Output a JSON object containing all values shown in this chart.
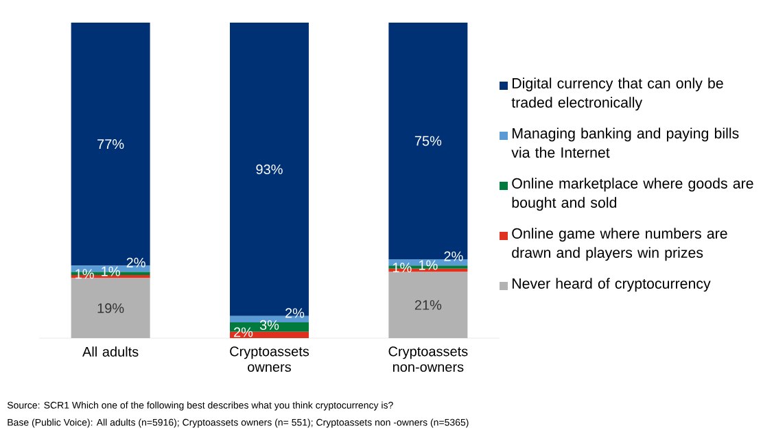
{
  "chart_data": {
    "type": "bar",
    "stacked": true,
    "categories": [
      "All adults",
      "Cryptoassets owners",
      "Cryptoassets non-owners"
    ],
    "series": [
      {
        "name": "Never heard of cryptocurrency",
        "color": "#b2b2b2",
        "values": [
          19,
          0,
          21
        ],
        "value_labels": [
          "19%",
          null,
          "21%"
        ]
      },
      {
        "name": "Online game where numbers are drawn and players win prizes",
        "color": "#e0301e",
        "values": [
          1,
          2,
          1
        ],
        "value_labels": [
          "1%",
          "2%",
          "1%"
        ]
      },
      {
        "name": "Online marketplace where goods are bought and sold",
        "color": "#007a3d",
        "values": [
          1,
          3,
          1
        ],
        "value_labels": [
          "1%",
          "3%",
          "1%"
        ]
      },
      {
        "name": "Managing banking and paying bills via the Internet",
        "color": "#5b9bd5",
        "values": [
          2,
          2,
          2
        ],
        "value_labels": [
          "2%",
          "2%",
          "2%"
        ]
      },
      {
        "name": "Digital currency that can only be traded electronically",
        "color": "#003175",
        "values": [
          77,
          93,
          75
        ],
        "value_labels": [
          "77%",
          "93%",
          "75%"
        ]
      }
    ],
    "legend": "right",
    "annotations": [
      "Source: SCR1 Which one of the following best describes what you think cryptocurrency is?",
      "Base (Public Voice): All adults (n=5916); Cryptoassets owners (n= 551); Cryptoassets non -owners (n=5365)"
    ]
  }
}
